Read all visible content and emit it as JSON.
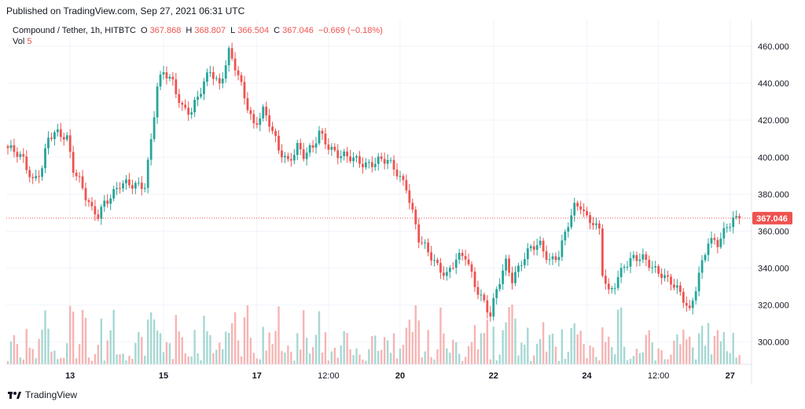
{
  "header": {
    "published": "Published on TradingView.com, Sep 27, 2021 06:31 UTC"
  },
  "legend": {
    "symbol": "Compound / Tether, 1h, HITBTC",
    "o_label": "O",
    "o": "367.868",
    "h_label": "H",
    "h": "368.807",
    "l_label": "L",
    "l": "366.504",
    "c_label": "C",
    "c": "367.046",
    "change": "−0.669 (−0.18%)",
    "vol_label": "Vol",
    "vol": "5"
  },
  "footer": {
    "brand": "TradingView",
    "brand_icon": "tradingview-logo-icon"
  },
  "colors": {
    "up": "#26a69a",
    "down": "#ef5350",
    "up_vol": "#a6d8d3",
    "down_vol": "#f5b5b4",
    "grid": "#f0f3fa",
    "axis_text": "#131722",
    "price_label_bg": "#ef5350"
  },
  "chart_data": {
    "type": "candlestick",
    "title": "Compound / Tether, 1h, HITBTC",
    "price_axis": {
      "ticks": [
        "460.000",
        "440.000",
        "420.000",
        "400.000",
        "380.000",
        "360.000",
        "340.000",
        "320.000",
        "300.000"
      ],
      "ylim": [
        288,
        474
      ]
    },
    "time_axis": {
      "ticks": [
        "13",
        "15",
        "17",
        "12:00",
        "20",
        "22",
        "24",
        "12:00",
        "27"
      ],
      "tick_index": [
        20,
        50,
        80,
        103,
        126,
        156,
        186,
        209,
        232
      ]
    },
    "last_price": 367.046,
    "last_price_label": "367.046",
    "grid": true,
    "close_anchors": [
      [
        0,
        405
      ],
      [
        5,
        398
      ],
      [
        8,
        388
      ],
      [
        11,
        395
      ],
      [
        13,
        410
      ],
      [
        16,
        412
      ],
      [
        19,
        411
      ],
      [
        21,
        395
      ],
      [
        23,
        388
      ],
      [
        25,
        378
      ],
      [
        27,
        370
      ],
      [
        29,
        368
      ],
      [
        31,
        376
      ],
      [
        33,
        380
      ],
      [
        36,
        385
      ],
      [
        40,
        384
      ],
      [
        44,
        386
      ],
      [
        46,
        410
      ],
      [
        48,
        438
      ],
      [
        50,
        445
      ],
      [
        53,
        440
      ],
      [
        56,
        428
      ],
      [
        59,
        425
      ],
      [
        62,
        435
      ],
      [
        65,
        447
      ],
      [
        68,
        440
      ],
      [
        71,
        457
      ],
      [
        73,
        448
      ],
      [
        76,
        432
      ],
      [
        79,
        418
      ],
      [
        82,
        426
      ],
      [
        84,
        418
      ],
      [
        87,
        403
      ],
      [
        90,
        398
      ],
      [
        93,
        407
      ],
      [
        95,
        401
      ],
      [
        98,
        404
      ],
      [
        100,
        413
      ],
      [
        103,
        407
      ],
      [
        106,
        402
      ],
      [
        109,
        399
      ],
      [
        112,
        398
      ],
      [
        115,
        397
      ],
      [
        119,
        398
      ],
      [
        122,
        397
      ],
      [
        125,
        392
      ],
      [
        128,
        385
      ],
      [
        130,
        370
      ],
      [
        132,
        355
      ],
      [
        135,
        348
      ],
      [
        138,
        342
      ],
      [
        141,
        337
      ],
      [
        144,
        344
      ],
      [
        147,
        346
      ],
      [
        150,
        332
      ],
      [
        153,
        322
      ],
      [
        155,
        314
      ],
      [
        157,
        327
      ],
      [
        160,
        343
      ],
      [
        162,
        335
      ],
      [
        165,
        344
      ],
      [
        168,
        350
      ],
      [
        171,
        352
      ],
      [
        174,
        345
      ],
      [
        177,
        348
      ],
      [
        180,
        363
      ],
      [
        182,
        372
      ],
      [
        184,
        374
      ],
      [
        186,
        368
      ],
      [
        188,
        366
      ],
      [
        190,
        360
      ],
      [
        191,
        337
      ],
      [
        193,
        325
      ],
      [
        195,
        331
      ],
      [
        198,
        343
      ],
      [
        201,
        346
      ],
      [
        204,
        344
      ],
      [
        207,
        340
      ],
      [
        210,
        338
      ],
      [
        213,
        333
      ],
      [
        216,
        325
      ],
      [
        219,
        316
      ],
      [
        222,
        338
      ],
      [
        225,
        355
      ],
      [
        228,
        352
      ],
      [
        231,
        362
      ],
      [
        233,
        368
      ],
      [
        235,
        367.046
      ]
    ]
  }
}
